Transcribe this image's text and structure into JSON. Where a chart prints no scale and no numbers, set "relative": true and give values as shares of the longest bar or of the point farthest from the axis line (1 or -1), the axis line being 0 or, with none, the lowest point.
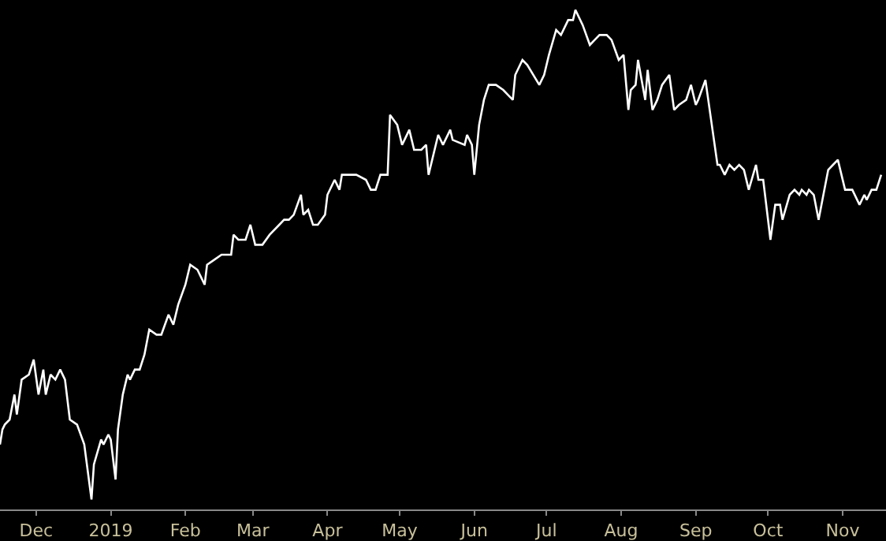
{
  "chart_data": {
    "type": "line",
    "relative": true,
    "grid": false,
    "marker": "none",
    "line_style": "solid",
    "xlim": [
      "2018-11-16",
      "2019-11-19"
    ],
    "xticks": [
      {
        "value": "2018-12-01",
        "label": "Dec"
      },
      {
        "value": "2019-01-01",
        "label": "2019"
      },
      {
        "value": "2019-02-01",
        "label": "Feb"
      },
      {
        "value": "2019-03-01",
        "label": "Mar"
      },
      {
        "value": "2019-04-01",
        "label": "Apr"
      },
      {
        "value": "2019-05-01",
        "label": "May"
      },
      {
        "value": "2019-06-01",
        "label": "Jun"
      },
      {
        "value": "2019-07-01",
        "label": "Jul"
      },
      {
        "value": "2019-08-01",
        "label": "Aug"
      },
      {
        "value": "2019-09-01",
        "label": "Sep"
      },
      {
        "value": "2019-10-01",
        "label": "Oct"
      },
      {
        "value": "2019-11-01",
        "label": "Nov"
      }
    ],
    "tick_labels": "x",
    "x": [
      "2018-11-16",
      "2018-11-17",
      "2018-11-18",
      "2018-11-20",
      "2018-11-22",
      "2018-11-23",
      "2018-11-25",
      "2018-11-28",
      "2018-11-30",
      "2018-12-02",
      "2018-12-04",
      "2018-12-05",
      "2018-12-07",
      "2018-12-09",
      "2018-12-11",
      "2018-12-13",
      "2018-12-15",
      "2018-12-18",
      "2018-12-21",
      "2018-12-24",
      "2018-12-25",
      "2018-12-28",
      "2018-12-29",
      "2018-12-31",
      "2019-01-01",
      "2019-01-03",
      "2019-01-04",
      "2019-01-06",
      "2019-01-08",
      "2019-01-09",
      "2019-01-11",
      "2019-01-13",
      "2019-01-15",
      "2019-01-17",
      "2019-01-20",
      "2019-01-22",
      "2019-01-25",
      "2019-01-27",
      "2019-01-29",
      "2019-02-01",
      "2019-02-03",
      "2019-02-06",
      "2019-02-09",
      "2019-02-10",
      "2019-02-13",
      "2019-02-16",
      "2019-02-20",
      "2019-02-21",
      "2019-02-23",
      "2019-02-26",
      "2019-02-28",
      "2019-03-02",
      "2019-03-05",
      "2019-03-08",
      "2019-03-12",
      "2019-03-14",
      "2019-03-16",
      "2019-03-18",
      "2019-03-21",
      "2019-03-22",
      "2019-03-24",
      "2019-03-26",
      "2019-03-28",
      "2019-03-31",
      "2019-04-01",
      "2019-04-04",
      "2019-04-06",
      "2019-04-07",
      "2019-04-10",
      "2019-04-13",
      "2019-04-17",
      "2019-04-19",
      "2019-04-21",
      "2019-04-23",
      "2019-04-26",
      "2019-04-27",
      "2019-04-30",
      "2019-05-02",
      "2019-05-03",
      "2019-05-05",
      "2019-05-07",
      "2019-05-10",
      "2019-05-12",
      "2019-05-13",
      "2019-05-17",
      "2019-05-19",
      "2019-05-22",
      "2019-05-23",
      "2019-05-28",
      "2019-05-29",
      "2019-05-31",
      "2019-06-01",
      "2019-06-03",
      "2019-06-05",
      "2019-06-07",
      "2019-06-10",
      "2019-06-13",
      "2019-06-15",
      "2019-06-17",
      "2019-06-18",
      "2019-06-21",
      "2019-06-23",
      "2019-06-28",
      "2019-06-30",
      "2019-07-02",
      "2019-07-05",
      "2019-07-07",
      "2019-07-10",
      "2019-07-12",
      "2019-07-13",
      "2019-07-16",
      "2019-07-19",
      "2019-07-21",
      "2019-07-23",
      "2019-07-25",
      "2019-07-26",
      "2019-07-28",
      "2019-07-31",
      "2019-08-02",
      "2019-08-04",
      "2019-08-05",
      "2019-08-07",
      "2019-08-08",
      "2019-08-11",
      "2019-08-12",
      "2019-08-14",
      "2019-08-16",
      "2019-08-18",
      "2019-08-21",
      "2019-08-23",
      "2019-08-25",
      "2019-08-28",
      "2019-08-30",
      "2019-09-01",
      "2019-09-02",
      "2019-09-05",
      "2019-09-10",
      "2019-09-11",
      "2019-09-13",
      "2019-09-15",
      "2019-09-17",
      "2019-09-19",
      "2019-09-21",
      "2019-09-23",
      "2019-09-26",
      "2019-09-27",
      "2019-09-29",
      "2019-10-02",
      "2019-10-04",
      "2019-10-06",
      "2019-10-07",
      "2019-10-10",
      "2019-10-12",
      "2019-10-14",
      "2019-10-15",
      "2019-10-17",
      "2019-10-18",
      "2019-10-20",
      "2019-10-22",
      "2019-10-24",
      "2019-10-26",
      "2019-10-28",
      "2019-10-30",
      "2019-11-02",
      "2019-11-05",
      "2019-11-08",
      "2019-11-10",
      "2019-11-11",
      "2019-11-13",
      "2019-11-15",
      "2019-11-17"
    ],
    "series": [
      {
        "color": "#ffffff",
        "values": [
          0.13,
          0.16,
          0.17,
          0.18,
          0.23,
          0.19,
          0.26,
          0.27,
          0.3,
          0.23,
          0.28,
          0.23,
          0.27,
          0.26,
          0.28,
          0.26,
          0.18,
          0.17,
          0.13,
          0.02,
          0.09,
          0.14,
          0.13,
          0.15,
          0.14,
          0.06,
          0.16,
          0.23,
          0.27,
          0.26,
          0.28,
          0.28,
          0.31,
          0.36,
          0.35,
          0.35,
          0.39,
          0.37,
          0.41,
          0.45,
          0.49,
          0.48,
          0.45,
          0.49,
          0.5,
          0.51,
          0.51,
          0.55,
          0.54,
          0.54,
          0.57,
          0.53,
          0.53,
          0.55,
          0.57,
          0.58,
          0.58,
          0.59,
          0.63,
          0.59,
          0.6,
          0.57,
          0.57,
          0.59,
          0.63,
          0.66,
          0.64,
          0.67,
          0.67,
          0.67,
          0.66,
          0.64,
          0.64,
          0.67,
          0.67,
          0.79,
          0.77,
          0.73,
          0.74,
          0.76,
          0.72,
          0.72,
          0.73,
          0.67,
          0.75,
          0.73,
          0.76,
          0.74,
          0.73,
          0.75,
          0.73,
          0.67,
          0.77,
          0.82,
          0.85,
          0.85,
          0.84,
          0.83,
          0.82,
          0.87,
          0.9,
          0.89,
          0.85,
          0.87,
          0.91,
          0.96,
          0.95,
          0.98,
          0.98,
          1.0,
          0.97,
          0.93,
          0.94,
          0.95,
          0.95,
          0.95,
          0.94,
          0.9,
          0.91,
          0.8,
          0.84,
          0.85,
          0.9,
          0.82,
          0.88,
          0.8,
          0.82,
          0.85,
          0.87,
          0.8,
          0.81,
          0.82,
          0.85,
          0.81,
          0.82,
          0.86,
          0.69,
          0.69,
          0.67,
          0.69,
          0.68,
          0.69,
          0.68,
          0.64,
          0.69,
          0.66,
          0.66,
          0.54,
          0.61,
          0.61,
          0.58,
          0.63,
          0.64,
          0.63,
          0.64,
          0.63,
          0.64,
          0.63,
          0.58,
          0.63,
          0.68,
          0.69,
          0.7,
          0.64,
          0.64,
          0.61,
          0.63,
          0.62,
          0.64,
          0.64,
          0.67
        ]
      }
    ]
  }
}
